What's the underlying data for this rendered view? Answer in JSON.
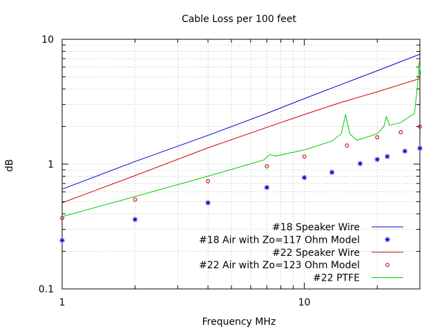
{
  "chart_data": {
    "type": "line",
    "title": "Cable Loss per 100 feet",
    "xlabel": "Frequency MHz",
    "ylabel": "dB",
    "xscale": "log",
    "yscale": "log",
    "xlim": [
      1,
      30
    ],
    "ylim": [
      0.1,
      10
    ],
    "x_ticks": [
      {
        "value": 1,
        "label": "1"
      },
      {
        "value": 10,
        "label": "10"
      }
    ],
    "y_ticks": [
      {
        "value": 0.1,
        "label": "0.1"
      },
      {
        "value": 1,
        "label": "1"
      },
      {
        "value": 10,
        "label": "10"
      }
    ],
    "grid": true,
    "legend_position": "bottom-right",
    "series": [
      {
        "name": "#18 Speaker Wire",
        "style": "line",
        "color": "#0000cc",
        "x": [
          1,
          2,
          4,
          7,
          10,
          14,
          20,
          30
        ],
        "y": [
          0.63,
          1.05,
          1.7,
          2.55,
          3.35,
          4.3,
          5.6,
          7.6
        ]
      },
      {
        "name": "#18 Air with Zo=117 Ohm Model",
        "style": "points",
        "marker": "star",
        "color": "#0000cc",
        "x": [
          1,
          2,
          4,
          7,
          10,
          13,
          17,
          20,
          22,
          26,
          30
        ],
        "y": [
          0.245,
          0.36,
          0.49,
          0.65,
          0.78,
          0.86,
          1.01,
          1.09,
          1.15,
          1.27,
          1.34
        ]
      },
      {
        "name": "#22 Speaker Wire",
        "style": "line",
        "color": "#cc0000",
        "x": [
          1,
          2,
          4,
          7,
          10,
          14,
          20,
          30
        ],
        "y": [
          0.49,
          0.81,
          1.35,
          1.97,
          2.5,
          3.1,
          3.8,
          4.85
        ]
      },
      {
        "name": "#22 Air with Zo=123 Ohm Model",
        "style": "points",
        "marker": "open-circle",
        "color": "#cc0000",
        "x": [
          1,
          2,
          4,
          7,
          10,
          15,
          20,
          25,
          30
        ],
        "y": [
          0.37,
          0.52,
          0.73,
          0.96,
          1.15,
          1.41,
          1.64,
          1.8,
          2.0
        ]
      },
      {
        "name": "#22 PTFE",
        "style": "line",
        "color": "#00cc00",
        "x": [
          1,
          2,
          4,
          6.8,
          7.2,
          7.6,
          10,
          13,
          14.2,
          14.8,
          15.4,
          16.5,
          20,
          21.3,
          21.8,
          22.5,
          25,
          28.5,
          29.4,
          29.8,
          30.2
        ],
        "y": [
          0.38,
          0.55,
          0.8,
          1.08,
          1.19,
          1.16,
          1.3,
          1.53,
          1.75,
          2.5,
          1.75,
          1.55,
          1.75,
          2.0,
          2.4,
          2.05,
          2.15,
          2.55,
          4.5,
          6.6,
          5.3
        ]
      }
    ]
  }
}
